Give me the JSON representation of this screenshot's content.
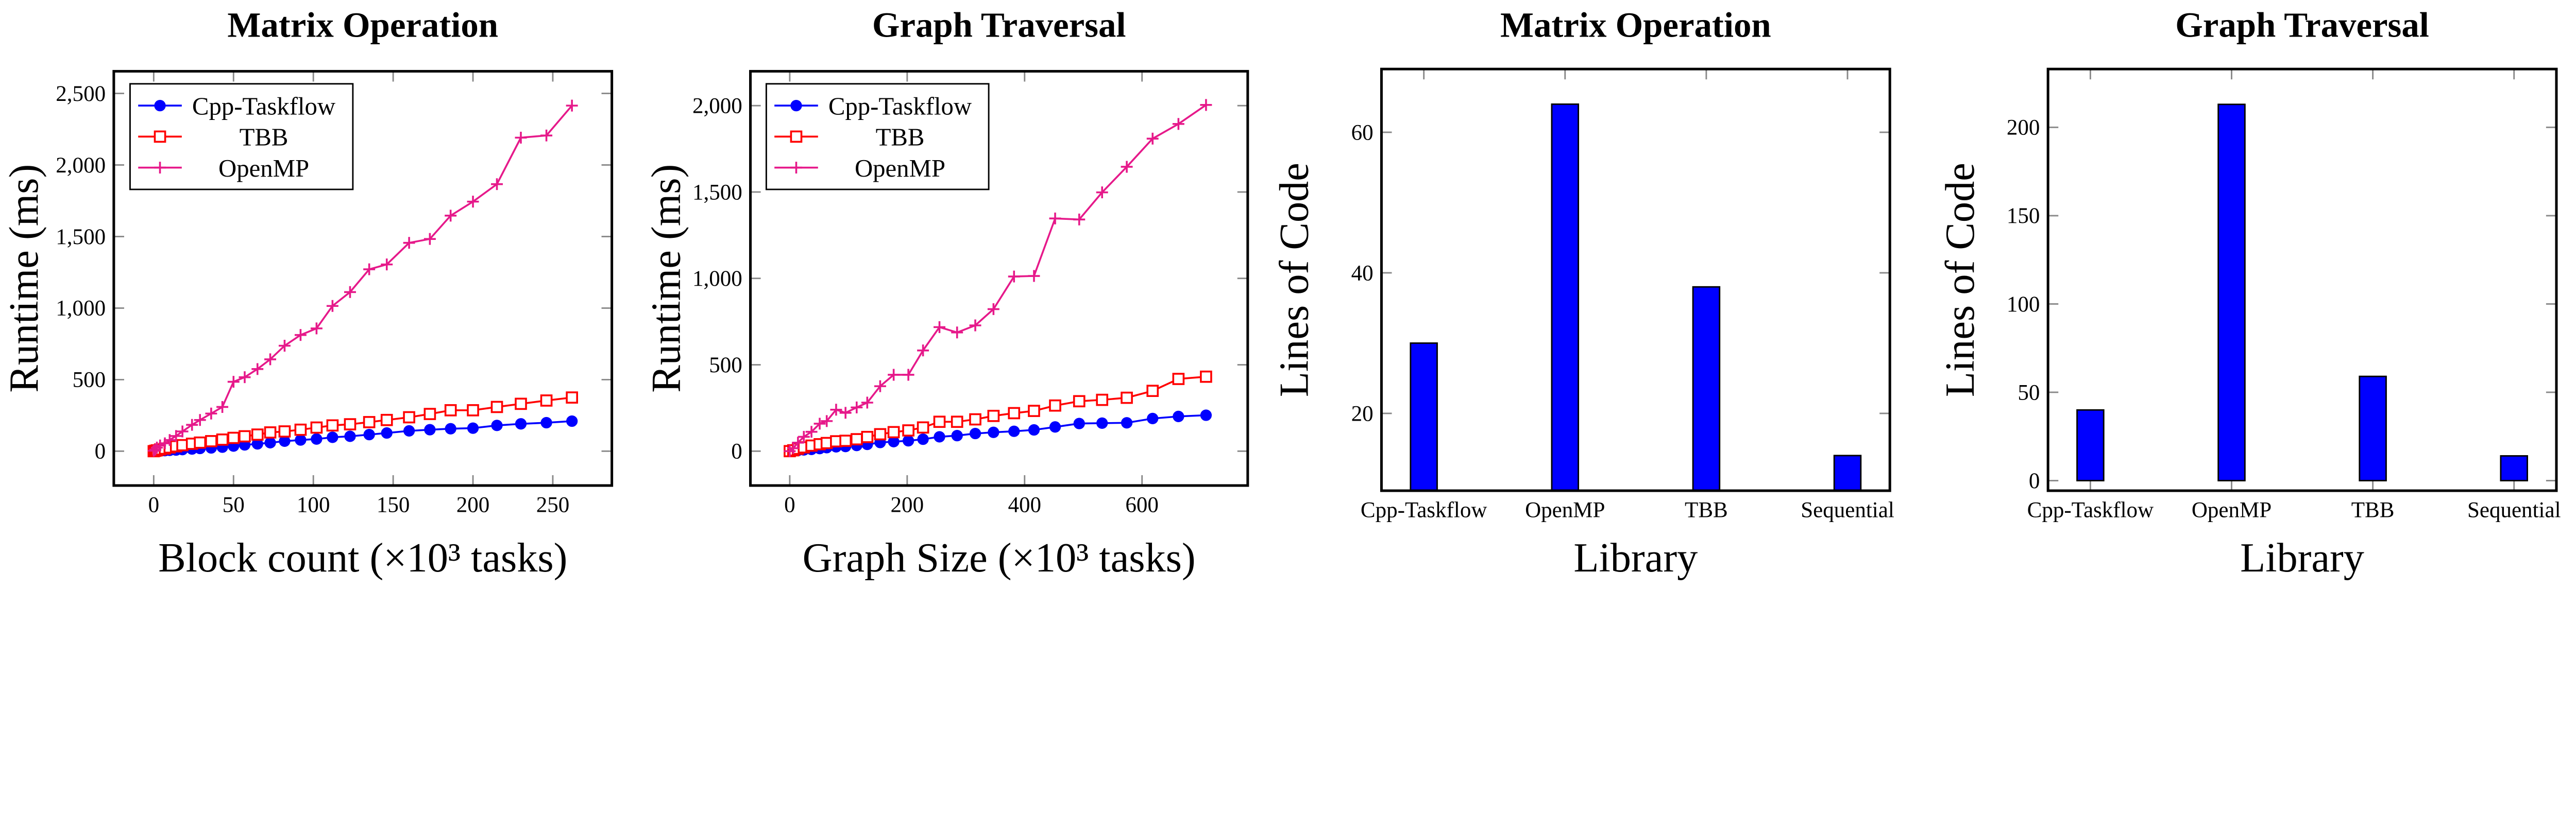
{
  "chart_data": [
    {
      "type": "line",
      "title": "Matrix Operation",
      "xlabel": "Block count (×10³ tasks)",
      "ylabel": "Runtime (ms)",
      "xlim": [
        -25,
        287
      ],
      "ylim": [
        -240,
        2655
      ],
      "xticks": [
        "0",
        "50",
        "100",
        "150",
        "200",
        "250"
      ],
      "xtick_values": [
        0,
        50,
        100,
        150,
        200,
        250
      ],
      "yticks": [
        "0",
        "500",
        "1,000",
        "1,500",
        "2,000",
        "2,500"
      ],
      "ytick_values": [
        0,
        500,
        1000,
        1500,
        2000,
        2500
      ],
      "grid": false,
      "legend_position": "top-left",
      "x": [
        0,
        1,
        2,
        4,
        7,
        10,
        14,
        18,
        24,
        29,
        36,
        43,
        50,
        57,
        65,
        73,
        82,
        92,
        102,
        112,
        123,
        135,
        146,
        160,
        173,
        186,
        200,
        215,
        230,
        246,
        262
      ],
      "series": [
        {
          "name": "Cpp-Taskflow",
          "color": "#0000ff",
          "marker": "circle",
          "values": [
            0,
            0.5,
            1,
            2,
            4,
            6,
            8,
            11,
            15,
            19,
            23,
            28,
            36,
            44,
            51,
            59,
            70,
            78,
            85,
            97,
            104,
            116,
            127,
            142,
            150,
            157,
            161,
            180,
            191,
            199,
            210
          ]
        },
        {
          "name": "TBB",
          "color": "#ff0000",
          "marker": "square",
          "values": [
            0,
            3,
            6,
            12,
            18,
            26,
            34,
            42,
            52,
            60,
            70,
            81,
            93,
            104,
            116,
            131,
            138,
            150,
            165,
            180,
            188,
            203,
            218,
            237,
            260,
            286,
            286,
            309,
            331,
            354,
            375
          ]
        },
        {
          "name": "OpenMP",
          "color": "#e6198a",
          "marker": "plus",
          "values": [
            3,
            11,
            25,
            40,
            55,
            78,
            106,
            138,
            184,
            218,
            263,
            309,
            485,
            517,
            574,
            642,
            737,
            812,
            858,
            1015,
            1112,
            1271,
            1305,
            1456,
            1483,
            1646,
            1744,
            1866,
            2191,
            2206,
            2415
          ]
        }
      ]
    },
    {
      "type": "line",
      "title": "Graph Traversal",
      "xlabel": "Graph Size (×10³ tasks)",
      "ylabel": "Runtime (ms)",
      "xlim": [
        -67,
        780
      ],
      "ylim": [
        -199,
        2199
      ],
      "xticks": [
        "0",
        "200",
        "400",
        "600"
      ],
      "xtick_values": [
        0,
        200,
        400,
        600
      ],
      "yticks": [
        "0",
        "500",
        "1,000",
        "1,500",
        "2,000"
      ],
      "ytick_values": [
        0,
        500,
        1000,
        1500,
        2000
      ],
      "grid": false,
      "legend_position": "top-left",
      "x": [
        0,
        6,
        14,
        24,
        37,
        51,
        63,
        79,
        95,
        114,
        132,
        154,
        177,
        202,
        227,
        255,
        285,
        316,
        347,
        382,
        416,
        452,
        493,
        532,
        574,
        618,
        662,
        709
      ],
      "series": [
        {
          "name": "Cpp-Taskflow",
          "color": "#0000ff",
          "marker": "circle",
          "values": [
            0,
            2,
            4,
            7,
            10,
            15,
            20,
            25,
            27,
            33,
            39,
            50,
            55,
            60,
            69,
            83,
            90,
            102,
            109,
            115,
            123,
            140,
            160,
            162,
            164,
            189,
            201,
            208
          ]
        },
        {
          "name": "TBB",
          "color": "#ff0000",
          "marker": "square",
          "values": [
            0,
            5,
            14,
            22,
            32,
            40,
            47,
            57,
            60,
            69,
            82,
            98,
            110,
            120,
            137,
            170,
            170,
            184,
            204,
            220,
            233,
            264,
            289,
            297,
            309,
            349,
            418,
            431
          ]
        },
        {
          "name": "OpenMP",
          "color": "#e6198a",
          "marker": "plus",
          "values": [
            0,
            17,
            49,
            83,
            112,
            159,
            174,
            240,
            222,
            253,
            281,
            376,
            442,
            442,
            583,
            718,
            687,
            728,
            822,
            1011,
            1014,
            1347,
            1341,
            1498,
            1646,
            1809,
            1894,
            2004
          ]
        }
      ]
    },
    {
      "type": "bar",
      "title": "Matrix Operation",
      "xlabel": "Library",
      "ylabel": "Lines of Code",
      "categories": [
        "Cpp-Taskflow",
        "OpenMP",
        "TBB",
        "Sequential"
      ],
      "values": [
        30,
        64,
        38,
        14
      ],
      "ylim": [
        9,
        69
      ],
      "yticks": [
        "20",
        "40",
        "60"
      ],
      "ytick_values": [
        20,
        40,
        60
      ],
      "color": "#0000ff",
      "grid": false
    },
    {
      "type": "bar",
      "title": "Graph Traversal",
      "xlabel": "Library",
      "ylabel": "Lines of Code",
      "categories": [
        "Cpp-Taskflow",
        "OpenMP",
        "TBB",
        "Sequential"
      ],
      "values": [
        40,
        213,
        59,
        14
      ],
      "ylim": [
        -5.7,
        233
      ],
      "yticks": [
        "0",
        "50",
        "100",
        "150",
        "200"
      ],
      "ytick_values": [
        0,
        50,
        100,
        150,
        200
      ],
      "color": "#0000ff",
      "grid": false
    }
  ]
}
